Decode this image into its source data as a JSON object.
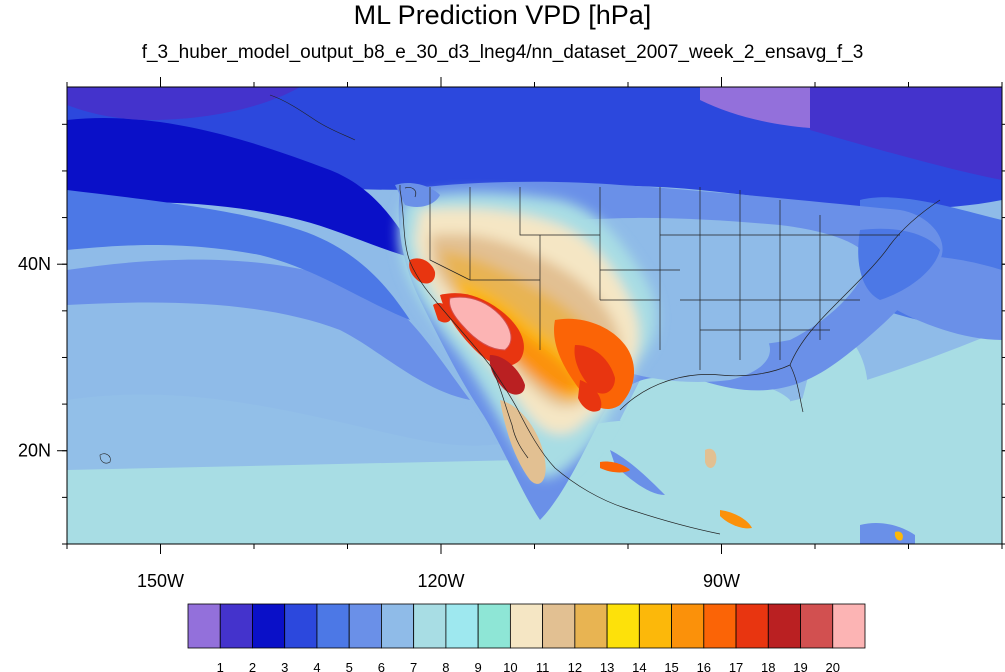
{
  "title": "ML Prediction VPD [hPa]",
  "subtitle": "f_3_huber_model_output_b8_e_30_d3_lneg4/nn_dataset_2007_week_2_ensavg_f_3",
  "map": {
    "projection": "cylindrical-equidistant",
    "lon_range": [
      -160,
      -60
    ],
    "lat_range": [
      10,
      59
    ],
    "lon_ticks": [
      {
        "value": -150,
        "label": "150W"
      },
      {
        "value": -120,
        "label": "120W"
      },
      {
        "value": -90,
        "label": "90W"
      }
    ],
    "lat_ticks": [
      {
        "value": 40,
        "label": "40N"
      },
      {
        "value": 20,
        "label": "20N"
      }
    ]
  },
  "colorbar": {
    "labels": [
      "1",
      "2",
      "3",
      "4",
      "5",
      "6",
      "7",
      "8",
      "9",
      "10",
      "11",
      "12",
      "13",
      "14",
      "15",
      "16",
      "17",
      "18",
      "19",
      "20"
    ],
    "colors": [
      "#9370db",
      "#4433cc",
      "#0a10c8",
      "#2c48dd",
      "#4c78e6",
      "#6a90e8",
      "#8fbbe8",
      "#a8dde4",
      "#9ee8ef",
      "#8ee6d6",
      "#f5e6c4",
      "#e2c092",
      "#e8b452",
      "#fde10a",
      "#fcb80a",
      "#fb910a",
      "#fb6406",
      "#e83510",
      "#ba2022",
      "#d25050",
      "#fcb4b4"
    ]
  }
}
